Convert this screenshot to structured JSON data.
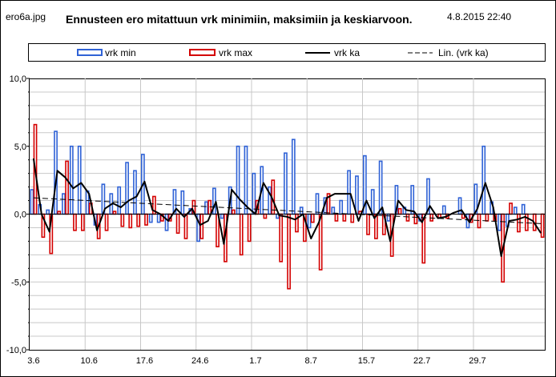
{
  "header": {
    "filename": "ero6a.jpg",
    "title": "Ennusteen ero mitattuun vrk minimiin,  maksimiin  ja keskiarvoon.",
    "timestamp": "4.8.2015  22:40"
  },
  "colors": {
    "min": "#2f62d6",
    "max": "#d40000",
    "avg": "#000000",
    "trend": "#000000",
    "grid": "#c8c8c8"
  },
  "chart_data": {
    "type": "bar",
    "title": "Ennusteen ero mitattuun vrk minimiin,  maksimiin  ja keskiarvoon.",
    "ylim": [
      -10,
      10
    ],
    "ytick_labels": [
      "10,0",
      "5,0",
      "0,0",
      "-5,0",
      "-10,0"
    ],
    "xtick_labels": [
      "3.6",
      "10.6",
      "17.6",
      "24.6",
      "1.7",
      "8.7",
      "15.7",
      "22.7",
      "29.7"
    ],
    "xtick_indices": [
      0,
      7,
      14,
      21,
      28,
      35,
      42,
      49,
      56
    ],
    "categories_count": 65,
    "legend_position": "top",
    "grid": true,
    "series": [
      {
        "name": "vrk min",
        "type": "bar",
        "values": [
          1.8,
          0.7,
          0.3,
          6.1,
          1.5,
          5.0,
          5.0,
          1.7,
          -0.8,
          2.2,
          1.5,
          2.0,
          3.8,
          3.2,
          4.4,
          -0.6,
          -0.6,
          -1.2,
          1.8,
          1.7,
          0.4,
          -2.0,
          0.9,
          1.9,
          -0.3,
          2.0,
          5.0,
          5.0,
          3.0,
          3.5,
          2.0,
          -0.3,
          4.5,
          5.5,
          0.5,
          -1.0,
          1.5,
          1.2,
          0.5,
          1.0,
          3.2,
          2.8,
          4.3,
          1.8,
          3.9,
          -0.5,
          2.1,
          0.5,
          2.1,
          -0.5,
          2.6,
          0.0,
          0.6,
          0.0,
          1.2,
          -1.0,
          2.2,
          5.0,
          0.9,
          -1.2,
          -0.9,
          0.5,
          0.7,
          0.0,
          0.0
        ]
      },
      {
        "name": "vrk max",
        "type": "bar",
        "values": [
          6.6,
          -1.7,
          -2.9,
          0.2,
          3.9,
          -1.2,
          -1.2,
          0.8,
          -1.8,
          -1.2,
          0.2,
          -0.9,
          -1.0,
          -0.9,
          -0.8,
          1.3,
          -0.5,
          -0.5,
          -1.4,
          -1.8,
          1.0,
          -1.8,
          1.0,
          -2.4,
          -3.5,
          0.3,
          -3.0,
          -2.0,
          1.0,
          -0.3,
          2.5,
          -3.5,
          -5.5,
          -1.3,
          -2.0,
          -0.6,
          -4.1,
          1.5,
          -0.5,
          -0.5,
          -0.6,
          0.2,
          -1.5,
          -1.8,
          -1.5,
          -3.1,
          0.4,
          -0.5,
          -0.7,
          -3.6,
          -0.5,
          -0.3,
          -0.3,
          0.0,
          -0.3,
          -0.6,
          -1.0,
          -0.5,
          -0.5,
          -5.0,
          0.8,
          -1.3,
          -1.2,
          -1.2,
          -1.7
        ]
      },
      {
        "name": "vrk ka",
        "type": "line",
        "values": [
          4.1,
          0.0,
          -1.3,
          3.2,
          2.7,
          1.9,
          2.3,
          1.5,
          -1.2,
          0.4,
          0.8,
          0.5,
          1.0,
          1.3,
          2.4,
          0.3,
          0.0,
          -0.5,
          0.4,
          -0.2,
          0.4,
          -0.8,
          -0.5,
          0.9,
          -2.2,
          1.8,
          1.1,
          0.5,
          0.0,
          2.3,
          1.3,
          -0.1,
          -0.2,
          -0.4,
          0.0,
          -1.8,
          -0.6,
          1.2,
          1.5,
          1.5,
          1.5,
          -0.5,
          1.0,
          -0.3,
          0.5,
          -2.0,
          1.0,
          0.3,
          0.2,
          -0.6,
          0.6,
          -0.3,
          -0.2,
          0.1,
          0.3,
          -0.6,
          0.4,
          2.3,
          0.5,
          -3.1,
          -0.5,
          -0.4,
          -0.2,
          -0.5,
          -1.4
        ]
      },
      {
        "name": "Lin. (vrk ka)",
        "type": "trendline",
        "values": [
          1.2,
          -0.7
        ]
      }
    ]
  }
}
